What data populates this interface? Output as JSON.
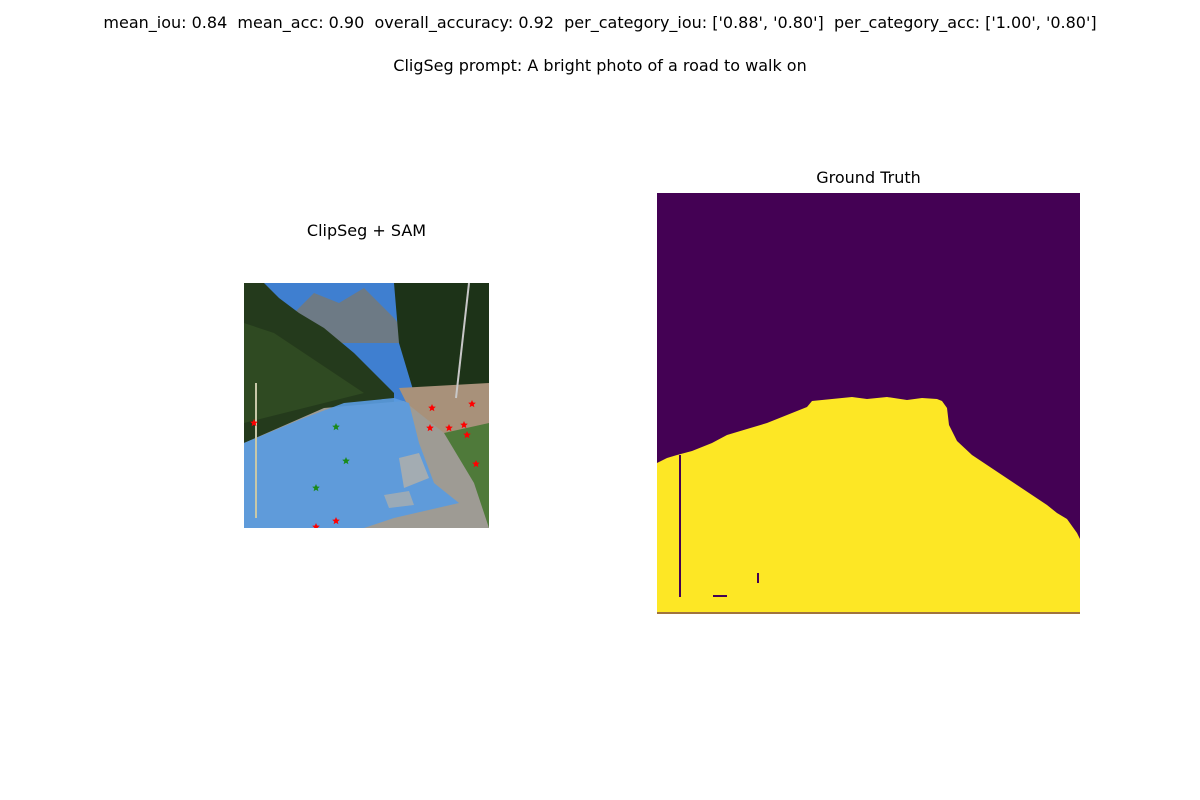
{
  "header": {
    "metrics_text": "mean_iou: 0.84  mean_acc: 0.90  overall_accuracy: 0.92  per_category_iou: ['0.88', '0.80']  per_category_acc: ['1.00', '0.80']",
    "prompt_text": "CligSeg prompt: A bright photo of a road to walk on"
  },
  "left_panel": {
    "title": "ClipSeg + SAM",
    "positive_point_color": "#1a8a1a",
    "negative_point_color": "#ff0000",
    "mask_color": "#5a9be0"
  },
  "right_panel": {
    "title": "Ground Truth",
    "background_class_color": "#440154",
    "foreground_class_color": "#fde725"
  }
}
